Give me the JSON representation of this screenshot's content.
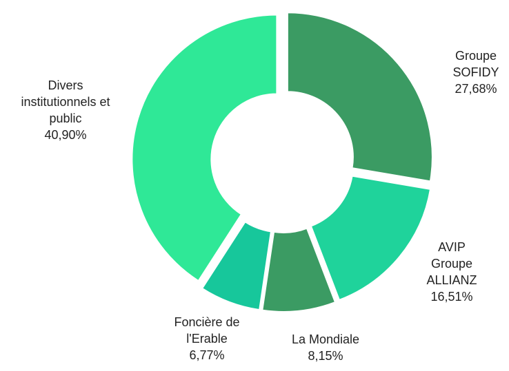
{
  "chart_data": {
    "type": "donut",
    "categories": [
      "Groupe SOFIDY",
      "AVIP Groupe ALLIANZ",
      "La Mondiale",
      "Foncière de l'Erable",
      "Divers institutionnels et public"
    ],
    "values": [
      27.68,
      16.51,
      8.15,
      6.77,
      40.9
    ],
    "value_labels": [
      "27,68%",
      "16,51%",
      "8,15%",
      "6,77%",
      "40,90%"
    ],
    "colors": [
      "#3b9b63",
      "#1fd39b",
      "#3b9b63",
      "#17c79b",
      "#2fe897"
    ]
  }
}
